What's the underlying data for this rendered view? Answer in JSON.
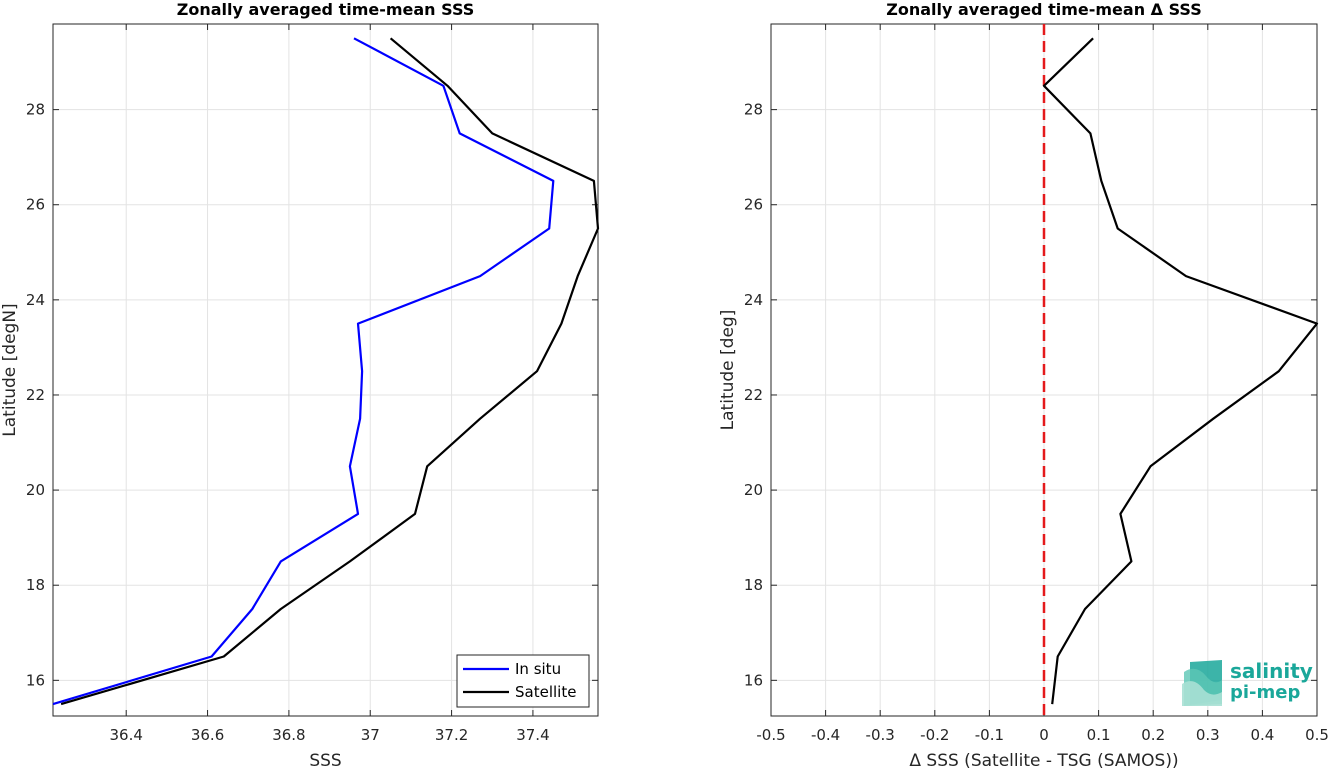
{
  "chart_data": [
    {
      "type": "line",
      "title": "Zonally averaged time-mean SSS",
      "xlabel": "SSS",
      "ylabel": "Latitude [degN]",
      "xlim": [
        36.22,
        37.56
      ],
      "ylim": [
        15.25,
        29.8
      ],
      "xticks": [
        36.4,
        36.6,
        36.8,
        37.0,
        37.2,
        37.4
      ],
      "xtick_labels": [
        "36.4",
        "36.6",
        "36.8",
        "37",
        "37.2",
        "37.4"
      ],
      "yticks": [
        16,
        18,
        20,
        22,
        24,
        26,
        28
      ],
      "ytick_labels": [
        "16",
        "18",
        "20",
        "22",
        "24",
        "26",
        "28"
      ],
      "grid": true,
      "legend": {
        "placement": "bottom-right"
      },
      "series": [
        {
          "name": "In situ",
          "color": "#0000ff",
          "x": [
            36.96,
            37.18,
            37.22,
            37.45,
            37.44,
            37.27,
            36.97,
            36.98,
            36.975,
            36.95,
            36.97,
            36.78,
            36.71,
            36.61,
            36.22
          ],
          "y": [
            29.5,
            28.5,
            27.5,
            26.5,
            25.5,
            24.5,
            23.5,
            22.5,
            21.5,
            20.5,
            19.5,
            18.5,
            17.5,
            16.5,
            15.5
          ]
        },
        {
          "name": "Satellite",
          "color": "#000000",
          "x": [
            37.05,
            37.19,
            37.3,
            37.55,
            37.56,
            37.51,
            37.47,
            37.41,
            37.27,
            37.14,
            37.11,
            36.95,
            36.78,
            36.64,
            36.24
          ],
          "y": [
            29.5,
            28.5,
            27.5,
            26.5,
            25.5,
            24.5,
            23.5,
            22.5,
            21.5,
            20.5,
            19.5,
            18.5,
            17.5,
            16.5,
            15.5
          ]
        }
      ]
    },
    {
      "type": "line",
      "title": "Zonally averaged time-mean Δ SSS",
      "xlabel": "Δ SSS (Satellite - TSG (SAMOS))",
      "ylabel": "Latitude [deg]",
      "xlim": [
        -0.5,
        0.5
      ],
      "ylim": [
        15.25,
        29.8
      ],
      "xticks": [
        -0.5,
        -0.4,
        -0.3,
        -0.2,
        -0.1,
        0,
        0.1,
        0.2,
        0.3,
        0.4,
        0.5
      ],
      "xtick_labels": [
        "-0.5",
        "-0.4",
        "-0.3",
        "-0.2",
        "-0.1",
        "0",
        "0.1",
        "0.2",
        "0.3",
        "0.4",
        "0.5"
      ],
      "yticks": [
        16,
        18,
        20,
        22,
        24,
        26,
        28
      ],
      "ytick_labels": [
        "16",
        "18",
        "20",
        "22",
        "24",
        "26",
        "28"
      ],
      "grid": true,
      "reference_line": {
        "x": 0,
        "color": "#e41a1c",
        "style": "dashed"
      },
      "series": [
        {
          "color": "#000000",
          "x": [
            0.09,
            0.0,
            0.085,
            0.105,
            0.135,
            0.26,
            0.5,
            0.43,
            0.31,
            0.195,
            0.14,
            0.16,
            0.075,
            0.025,
            0.015
          ],
          "y": [
            29.5,
            28.5,
            27.5,
            26.5,
            25.5,
            24.5,
            23.5,
            22.5,
            21.5,
            20.5,
            19.5,
            18.5,
            17.5,
            16.5,
            15.5
          ]
        }
      ]
    }
  ],
  "logo": {
    "line1": "salinity",
    "line2": "pi-mep",
    "color": "#1aa79a"
  }
}
